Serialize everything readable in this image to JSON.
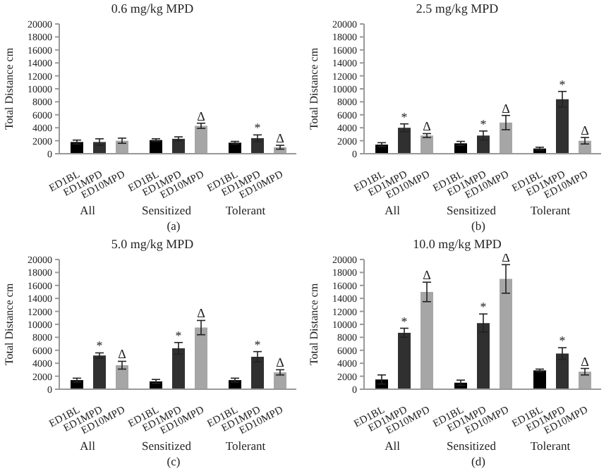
{
  "chart_data": [
    {
      "type": "bar",
      "title": "0.6 mg/kg MPD",
      "ylabel": "Total Distance cm",
      "categories": [
        "All",
        "Sensitized",
        "Tolerant"
      ],
      "ylim": [
        0,
        20000
      ],
      "yticks": [
        0,
        2000,
        4000,
        6000,
        8000,
        10000,
        12000,
        14000,
        16000,
        18000,
        20000
      ],
      "series": [
        {
          "name": "ED1BL",
          "color": "#000000",
          "values": [
            1800,
            2100,
            1700
          ],
          "errors": [
            300,
            200,
            200
          ]
        },
        {
          "name": "ED1MPD",
          "color": "#303030",
          "values": [
            1800,
            2300,
            2400
          ],
          "errors": [
            500,
            300,
            500
          ],
          "value_labels": [
            null,
            null,
            "*"
          ]
        },
        {
          "name": "ED10MPD",
          "color": "#a6a6a6",
          "values": [
            2000,
            4300,
            1000
          ],
          "errors": [
            400,
            400,
            300
          ],
          "value_labels": [
            null,
            "Δ",
            "Δ"
          ]
        }
      ],
      "annotations": [
        "(a)"
      ]
    },
    {
      "type": "bar",
      "title": "2.5 mg/kg MPD",
      "ylabel": "Total Distance cm",
      "categories": [
        "All",
        "Sensitized",
        "Tolerant"
      ],
      "ylim": [
        0,
        20000
      ],
      "yticks": [
        0,
        2000,
        4000,
        6000,
        8000,
        10000,
        12000,
        14000,
        16000,
        18000,
        20000
      ],
      "series": [
        {
          "name": "ED1BL",
          "color": "#000000",
          "values": [
            1400,
            1600,
            800
          ],
          "errors": [
            300,
            300,
            200
          ]
        },
        {
          "name": "ED1MPD",
          "color": "#303030",
          "values": [
            4000,
            2800,
            8400
          ],
          "errors": [
            600,
            700,
            1200
          ],
          "value_labels": [
            "*",
            "*",
            "*"
          ]
        },
        {
          "name": "ED10MPD",
          "color": "#a6a6a6",
          "values": [
            2800,
            4800,
            2000
          ],
          "errors": [
            300,
            1100,
            500
          ],
          "value_labels": [
            "Δ",
            "Δ",
            "Δ"
          ]
        }
      ],
      "annotations": [
        "(b)"
      ]
    },
    {
      "type": "bar",
      "title": "5.0 mg/kg MPD",
      "ylabel": "Total Distance cm",
      "categories": [
        "All",
        "Sensitized",
        "Tolerant"
      ],
      "ylim": [
        0,
        20000
      ],
      "yticks": [
        0,
        2000,
        4000,
        6000,
        8000,
        10000,
        12000,
        14000,
        16000,
        18000,
        20000
      ],
      "series": [
        {
          "name": "ED1BL",
          "color": "#000000",
          "values": [
            1400,
            1200,
            1400
          ],
          "errors": [
            300,
            300,
            300
          ]
        },
        {
          "name": "ED1MPD",
          "color": "#303030",
          "values": [
            5200,
            6300,
            5000
          ],
          "errors": [
            400,
            900,
            800
          ],
          "value_labels": [
            "*",
            "*",
            "*"
          ]
        },
        {
          "name": "ED10MPD",
          "color": "#a6a6a6",
          "values": [
            3700,
            9500,
            2600
          ],
          "errors": [
            600,
            1100,
            400
          ],
          "value_labels": [
            "Δ",
            "Δ",
            "Δ"
          ]
        }
      ],
      "annotations": [
        "(c)"
      ]
    },
    {
      "type": "bar",
      "title": "10.0 mg/kg MPD",
      "ylabel": "Total Distance cm",
      "categories": [
        "All",
        "Sensitized",
        "Tolerant"
      ],
      "ylim": [
        0,
        20000
      ],
      "yticks": [
        0,
        2000,
        4000,
        6000,
        8000,
        10000,
        12000,
        14000,
        16000,
        18000,
        20000
      ],
      "series": [
        {
          "name": "ED1BL",
          "color": "#000000",
          "values": [
            1500,
            1000,
            2900
          ],
          "errors": [
            700,
            400,
            200
          ]
        },
        {
          "name": "ED1MPD",
          "color": "#303030",
          "values": [
            8700,
            10200,
            5500
          ],
          "errors": [
            700,
            1400,
            900
          ],
          "value_labels": [
            "*",
            "*",
            "*"
          ]
        },
        {
          "name": "ED10MPD",
          "color": "#a6a6a6",
          "values": [
            15000,
            17000,
            2700
          ],
          "errors": [
            1500,
            2200,
            500
          ],
          "value_labels": [
            "Δ",
            "Δ",
            "Δ"
          ]
        }
      ],
      "annotations": [
        "(d)"
      ]
    }
  ]
}
